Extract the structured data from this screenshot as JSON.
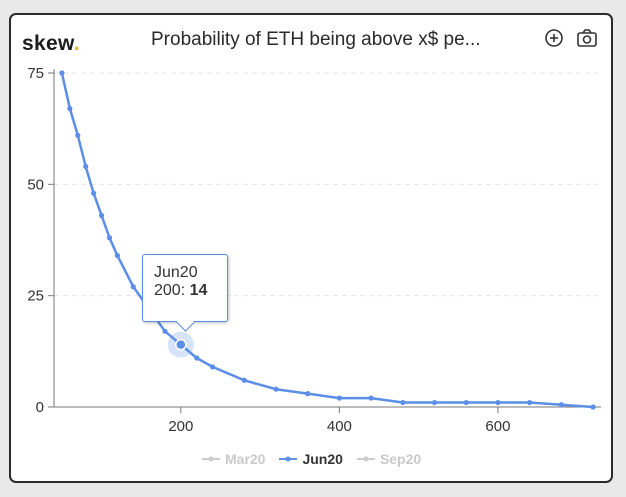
{
  "header": {
    "logo": "skew",
    "logo_dot": ".",
    "title": "Probability of ETH being above x$ pe...",
    "zoom_icon": "zoom-in-icon",
    "camera_icon": "camera-icon"
  },
  "colors": {
    "active_series": "#5b8ee6",
    "inactive_series": "#cccccc",
    "logo_dot": "#f2b01e"
  },
  "tooltip": {
    "series": "Jun20",
    "x_label": "200:",
    "value": "14"
  },
  "legend": [
    {
      "name": "Mar20",
      "active": false
    },
    {
      "name": "Jun20",
      "active": true
    },
    {
      "name": "Sep20",
      "active": false
    }
  ],
  "chart_data": {
    "type": "line",
    "title": "Probability of ETH being above x$ pe...",
    "xlabel": "",
    "ylabel": "",
    "xlim": [
      40,
      730
    ],
    "ylim": [
      0,
      75
    ],
    "x_ticks": [
      200,
      400,
      600
    ],
    "y_ticks": [
      0,
      25,
      50,
      75
    ],
    "grid": "horizontal dashed",
    "legend_position": "bottom",
    "highlight": {
      "series": "Jun20",
      "x": 200,
      "y": 14
    },
    "series": [
      {
        "name": "Jun20",
        "x": [
          50,
          60,
          70,
          80,
          90,
          100,
          110,
          120,
          140,
          160,
          180,
          200,
          220,
          240,
          280,
          320,
          360,
          400,
          440,
          480,
          520,
          560,
          600,
          640,
          680,
          720
        ],
        "values": [
          75,
          67,
          61,
          54,
          48,
          43,
          38,
          34,
          27,
          22,
          17,
          14,
          11,
          9,
          6,
          4,
          3,
          2,
          2,
          1,
          1,
          1,
          1,
          1,
          0.5,
          0
        ]
      }
    ]
  }
}
